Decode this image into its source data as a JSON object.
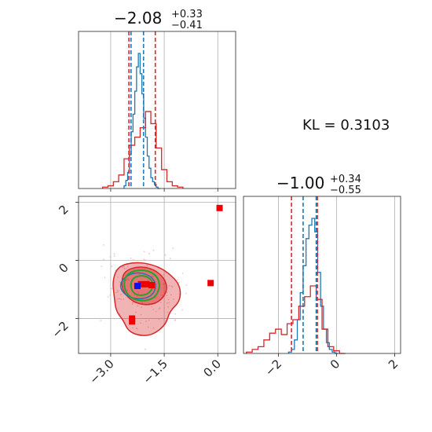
{
  "colors": {
    "blue": "#1f77b4",
    "red": "#d62728",
    "green": "#2ca02c",
    "square_red": "#ee0000",
    "square_blue": "#1010ee"
  },
  "kl_label": "KL = 0.3103",
  "chart_data": [
    {
      "type": "histogram",
      "panel": "top-left",
      "title": {
        "main": "−2.08",
        "sup": "+0.33",
        "sub": "−0.41"
      },
      "xlim": [
        -3.9,
        0.5
      ],
      "grid": true,
      "x_ticks": [
        -3.0,
        -1.5,
        0.0
      ],
      "series": [
        {
          "name": "blue",
          "x": [
            -2.6,
            -2.55,
            -2.5,
            -2.45,
            -2.4,
            -2.35,
            -2.3,
            -2.25,
            -2.2,
            -2.15,
            -2.1,
            -2.05,
            -2.0,
            -1.95,
            -1.9,
            -1.85,
            -1.8,
            -1.75,
            -1.7,
            -1.65
          ],
          "values": [
            0.02,
            0.06,
            0.12,
            0.25,
            0.42,
            0.55,
            0.72,
            0.9,
            1.0,
            0.85,
            0.7,
            0.52,
            0.38,
            0.24,
            0.15,
            0.08,
            0.05,
            0.03,
            0.01,
            0.0
          ]
        },
        {
          "name": "red",
          "x": [
            -3.15,
            -3.0,
            -2.85,
            -2.7,
            -2.55,
            -2.4,
            -2.25,
            -2.1,
            -1.95,
            -1.8,
            -1.65,
            -1.5,
            -1.35,
            -1.2,
            -1.05
          ],
          "values": [
            0.01,
            0.02,
            0.05,
            0.1,
            0.22,
            0.32,
            0.38,
            0.45,
            0.57,
            0.48,
            0.3,
            0.14,
            0.05,
            0.02,
            0.01
          ]
        }
      ],
      "vlines": [
        {
          "color": "red",
          "x": -2.49
        },
        {
          "color": "red",
          "x": -1.75
        },
        {
          "color": "blue",
          "x": -2.43
        },
        {
          "color": "blue",
          "x": -2.08
        }
      ]
    },
    {
      "type": "scatter-contour",
      "panel": "bottom-left",
      "xlim": [
        -3.9,
        0.5
      ],
      "ylim": [
        -3.2,
        2.2
      ],
      "grid": true,
      "x_ticks": [
        -3.0,
        -1.5,
        0.0
      ],
      "y_ticks": [
        -2,
        0,
        2
      ],
      "red_squares": [
        [
          0.05,
          1.8
        ],
        [
          -0.2,
          -0.78
        ],
        [
          -2.4,
          -2.0
        ],
        [
          -2.4,
          -2.1
        ],
        [
          -2.15,
          -0.82
        ],
        [
          -2.0,
          -0.82
        ],
        [
          -1.85,
          -0.85
        ]
      ],
      "blue_square": [
        -2.25,
        -0.88
      ],
      "contours": {
        "red_outer": [
          [
            -2.8,
            -0.2
          ],
          [
            -2.3,
            -0.05
          ],
          [
            -1.8,
            -0.15
          ],
          [
            -1.4,
            -0.4
          ],
          [
            -1.05,
            -0.85
          ],
          [
            -1.05,
            -1.4
          ],
          [
            -1.35,
            -1.75
          ],
          [
            -1.45,
            -2.2
          ],
          [
            -1.8,
            -2.55
          ],
          [
            -2.15,
            -2.6
          ],
          [
            -2.5,
            -2.45
          ],
          [
            -2.65,
            -2.05
          ],
          [
            -2.85,
            -1.75
          ],
          [
            -2.9,
            -1.25
          ],
          [
            -2.95,
            -0.7
          ]
        ],
        "red_inner": [
          [
            -2.6,
            -0.35
          ],
          [
            -2.2,
            -0.2
          ],
          [
            -1.8,
            -0.3
          ],
          [
            -1.5,
            -0.6
          ],
          [
            -1.4,
            -1.0
          ],
          [
            -1.6,
            -1.4
          ],
          [
            -1.95,
            -1.55
          ],
          [
            -2.35,
            -1.45
          ],
          [
            -2.65,
            -1.1
          ],
          [
            -2.7,
            -0.7
          ]
        ],
        "green_outer": [
          [
            -2.55,
            -0.45
          ],
          [
            -2.15,
            -0.3
          ],
          [
            -1.75,
            -0.45
          ],
          [
            -1.6,
            -0.85
          ],
          [
            -1.75,
            -1.3
          ],
          [
            -2.15,
            -1.42
          ],
          [
            -2.5,
            -1.25
          ],
          [
            -2.65,
            -0.85
          ]
        ],
        "green_inner": [
          [
            -2.4,
            -0.6
          ],
          [
            -2.1,
            -0.5
          ],
          [
            -1.85,
            -0.65
          ],
          [
            -1.8,
            -0.95
          ],
          [
            -2.0,
            -1.2
          ],
          [
            -2.3,
            -1.2
          ],
          [
            -2.45,
            -0.95
          ]
        ],
        "blue": [
          [
            -2.65,
            -0.6
          ],
          [
            -2.3,
            -0.4
          ],
          [
            -1.9,
            -0.5
          ],
          [
            -1.7,
            -0.85
          ],
          [
            -1.85,
            -1.25
          ],
          [
            -2.25,
            -1.35
          ],
          [
            -2.6,
            -1.2
          ],
          [
            -2.75,
            -0.9
          ]
        ]
      }
    },
    {
      "type": "histogram",
      "panel": "bottom-right",
      "title": {
        "main": "−1.00",
        "sup": "+0.34",
        "sub": "−0.55"
      },
      "xlim": [
        -3.2,
        2.2
      ],
      "grid": true,
      "x_ticks": [
        -2,
        0,
        2
      ],
      "series": [
        {
          "name": "blue",
          "x": [
            -1.6,
            -1.5,
            -1.4,
            -1.3,
            -1.2,
            -1.1,
            -1.0,
            -0.9,
            -0.8,
            -0.7,
            -0.6,
            -0.5,
            -0.4,
            -0.3,
            -0.2,
            -0.1,
            0.0
          ],
          "values": [
            0.01,
            0.03,
            0.1,
            0.25,
            0.45,
            0.65,
            0.85,
            0.95,
            1.0,
            0.9,
            0.6,
            0.35,
            0.18,
            0.08,
            0.03,
            0.01,
            0.0
          ]
        },
        {
          "name": "red",
          "x": [
            -3.0,
            -2.8,
            -2.6,
            -2.4,
            -2.2,
            -2.0,
            -1.8,
            -1.6,
            -1.4,
            -1.2,
            -1.0,
            -0.8,
            -0.6,
            -0.4,
            -0.2,
            0.0,
            0.2
          ],
          "values": [
            0.01,
            0.03,
            0.05,
            0.1,
            0.15,
            0.18,
            0.14,
            0.22,
            0.25,
            0.35,
            0.42,
            0.5,
            0.4,
            0.18,
            0.05,
            0.02,
            0.0
          ]
        }
      ],
      "vlines": [
        {
          "color": "red",
          "x": -1.55
        },
        {
          "color": "red",
          "x": -0.66
        },
        {
          "color": "blue",
          "x": -1.15
        },
        {
          "color": "blue",
          "x": -0.7
        }
      ]
    }
  ]
}
